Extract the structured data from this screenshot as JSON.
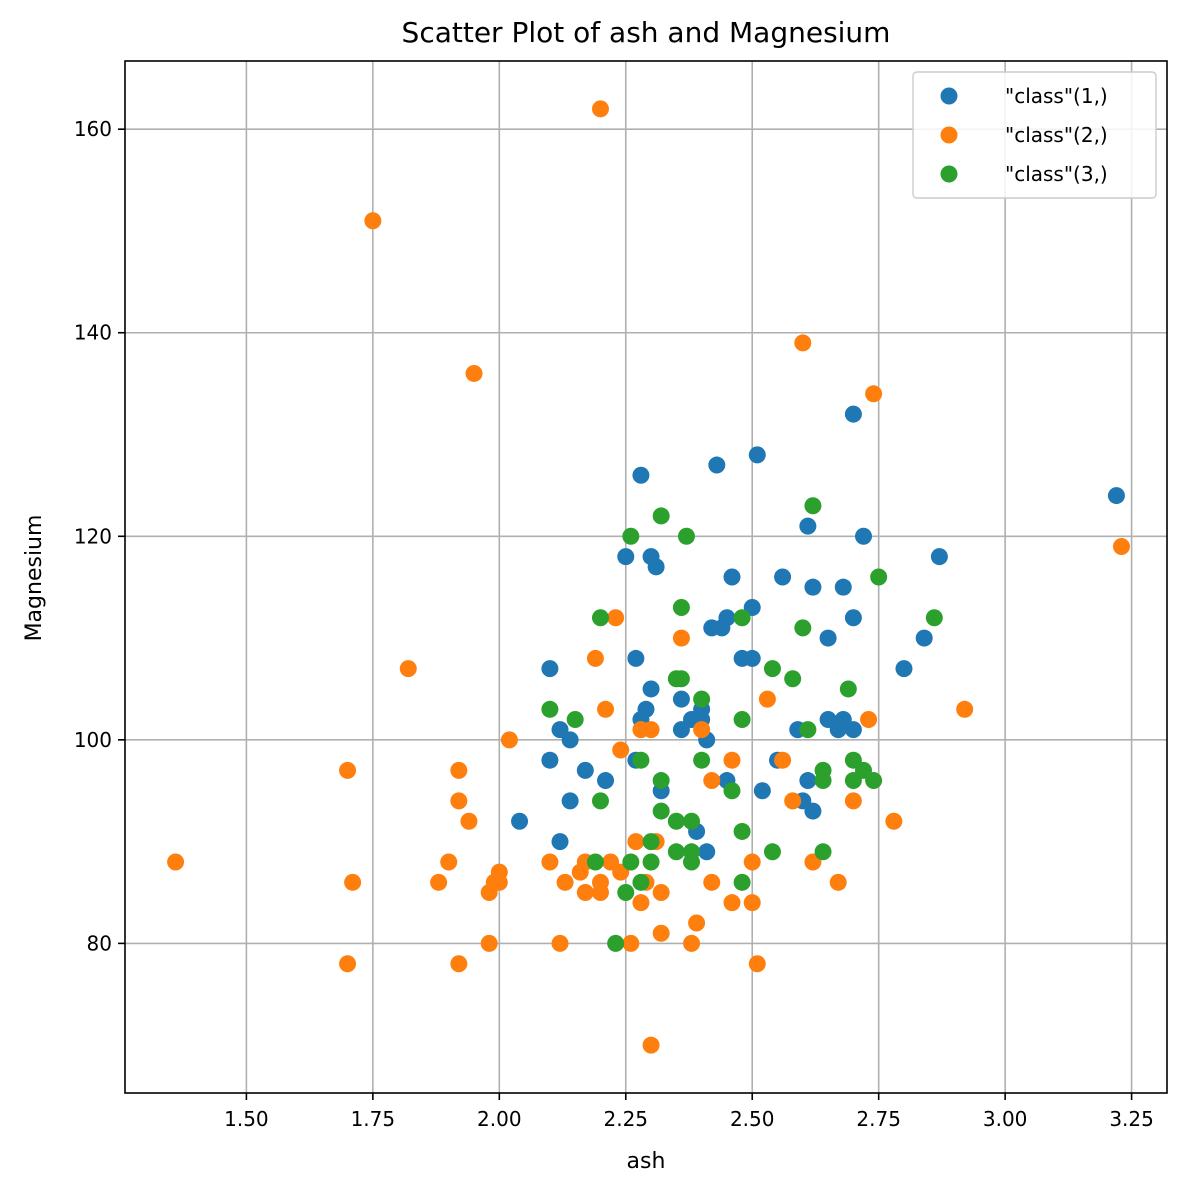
{
  "chart_data": {
    "type": "scatter",
    "title": "Scatter Plot of ash and Magnesium",
    "xlabel": "ash",
    "ylabel": "Magnesium",
    "xlim": [
      1.26,
      3.32
    ],
    "ylim": [
      65.3,
      166.7
    ],
    "xticks": [
      1.5,
      1.75,
      2.0,
      2.25,
      2.5,
      2.75,
      3.0,
      3.25
    ],
    "xtick_labels": [
      "1.50",
      "1.75",
      "2.00",
      "2.25",
      "2.50",
      "2.75",
      "3.00",
      "3.25"
    ],
    "yticks": [
      80,
      100,
      120,
      140,
      160
    ],
    "ytick_labels": [
      "80",
      "100",
      "120",
      "140",
      "160"
    ],
    "grid": true,
    "legend_position": "top-right",
    "series": [
      {
        "name": "\"class\"(1,)",
        "color": "#1f77b4",
        "points": [
          [
            3.22,
            124
          ],
          [
            2.87,
            118
          ],
          [
            2.84,
            110
          ],
          [
            2.8,
            107
          ],
          [
            2.72,
            120
          ],
          [
            2.7,
            132
          ],
          [
            2.7,
            112
          ],
          [
            2.7,
            101
          ],
          [
            2.68,
            115
          ],
          [
            2.68,
            102
          ],
          [
            2.67,
            101
          ],
          [
            2.65,
            110
          ],
          [
            2.65,
            102
          ],
          [
            2.62,
            115
          ],
          [
            2.62,
            93
          ],
          [
            2.61,
            121
          ],
          [
            2.61,
            96
          ],
          [
            2.6,
            94
          ],
          [
            2.59,
            101
          ],
          [
            2.56,
            116
          ],
          [
            2.55,
            98
          ],
          [
            2.52,
            95
          ],
          [
            2.51,
            128
          ],
          [
            2.5,
            113
          ],
          [
            2.5,
            108
          ],
          [
            2.48,
            108
          ],
          [
            2.46,
            116
          ],
          [
            2.45,
            112
          ],
          [
            2.45,
            96
          ],
          [
            2.44,
            111
          ],
          [
            2.43,
            127
          ],
          [
            2.42,
            111
          ],
          [
            2.41,
            100
          ],
          [
            2.41,
            89
          ],
          [
            2.4,
            103
          ],
          [
            2.4,
            102
          ],
          [
            2.39,
            91
          ],
          [
            2.38,
            102
          ],
          [
            2.36,
            104
          ],
          [
            2.36,
            101
          ],
          [
            2.32,
            95
          ],
          [
            2.31,
            117
          ],
          [
            2.3,
            118
          ],
          [
            2.3,
            105
          ],
          [
            2.29,
            103
          ],
          [
            2.28,
            126
          ],
          [
            2.28,
            102
          ],
          [
            2.27,
            108
          ],
          [
            2.27,
            98
          ],
          [
            2.25,
            118
          ],
          [
            2.21,
            96
          ],
          [
            2.17,
            97
          ],
          [
            2.14,
            100
          ],
          [
            2.14,
            94
          ],
          [
            2.12,
            101
          ],
          [
            2.12,
            90
          ],
          [
            2.1,
            107
          ],
          [
            2.1,
            98
          ],
          [
            2.04,
            92
          ]
        ]
      },
      {
        "name": "\"class\"(2,)",
        "color": "#ff7f0e",
        "points": [
          [
            1.36,
            88
          ],
          [
            1.7,
            97
          ],
          [
            1.7,
            78
          ],
          [
            1.71,
            86
          ],
          [
            1.75,
            151
          ],
          [
            1.82,
            107
          ],
          [
            1.88,
            86
          ],
          [
            1.9,
            88
          ],
          [
            1.92,
            97
          ],
          [
            1.92,
            94
          ],
          [
            1.92,
            78
          ],
          [
            1.94,
            92
          ],
          [
            1.95,
            136
          ],
          [
            1.98,
            85
          ],
          [
            1.98,
            80
          ],
          [
            1.99,
            86
          ],
          [
            2.0,
            87
          ],
          [
            2.0,
            86
          ],
          [
            2.02,
            100
          ],
          [
            2.1,
            88
          ],
          [
            2.12,
            80
          ],
          [
            2.13,
            86
          ],
          [
            2.16,
            87
          ],
          [
            2.17,
            88
          ],
          [
            2.17,
            85
          ],
          [
            2.19,
            108
          ],
          [
            2.2,
            162
          ],
          [
            2.2,
            86
          ],
          [
            2.2,
            85
          ],
          [
            2.21,
            103
          ],
          [
            2.22,
            88
          ],
          [
            2.23,
            112
          ],
          [
            2.24,
            99
          ],
          [
            2.24,
            87
          ],
          [
            2.26,
            80
          ],
          [
            2.27,
            90
          ],
          [
            2.28,
            101
          ],
          [
            2.28,
            84
          ],
          [
            2.29,
            86
          ],
          [
            2.3,
            101
          ],
          [
            2.3,
            70
          ],
          [
            2.31,
            90
          ],
          [
            2.32,
            85
          ],
          [
            2.32,
            81
          ],
          [
            2.36,
            110
          ],
          [
            2.38,
            80
          ],
          [
            2.39,
            82
          ],
          [
            2.4,
            101
          ],
          [
            2.42,
            96
          ],
          [
            2.42,
            86
          ],
          [
            2.46,
            98
          ],
          [
            2.46,
            84
          ],
          [
            2.5,
            88
          ],
          [
            2.5,
            84
          ],
          [
            2.51,
            78
          ],
          [
            2.53,
            104
          ],
          [
            2.56,
            98
          ],
          [
            2.58,
            94
          ],
          [
            2.6,
            139
          ],
          [
            2.62,
            88
          ],
          [
            2.67,
            86
          ],
          [
            2.7,
            94
          ],
          [
            2.73,
            102
          ],
          [
            2.74,
            134
          ],
          [
            2.78,
            92
          ],
          [
            2.92,
            103
          ],
          [
            3.23,
            119
          ]
        ]
      },
      {
        "name": "\"class\"(3,)",
        "color": "#2ca02c",
        "points": [
          [
            2.1,
            103
          ],
          [
            2.15,
            102
          ],
          [
            2.19,
            88
          ],
          [
            2.2,
            112
          ],
          [
            2.2,
            94
          ],
          [
            2.23,
            80
          ],
          [
            2.25,
            85
          ],
          [
            2.26,
            120
          ],
          [
            2.26,
            88
          ],
          [
            2.28,
            98
          ],
          [
            2.28,
            86
          ],
          [
            2.3,
            90
          ],
          [
            2.3,
            88
          ],
          [
            2.32,
            122
          ],
          [
            2.32,
            96
          ],
          [
            2.32,
            93
          ],
          [
            2.35,
            106
          ],
          [
            2.35,
            92
          ],
          [
            2.35,
            89
          ],
          [
            2.36,
            113
          ],
          [
            2.36,
            106
          ],
          [
            2.37,
            120
          ],
          [
            2.38,
            92
          ],
          [
            2.38,
            89
          ],
          [
            2.38,
            88
          ],
          [
            2.4,
            104
          ],
          [
            2.4,
            98
          ],
          [
            2.46,
            95
          ],
          [
            2.48,
            112
          ],
          [
            2.48,
            102
          ],
          [
            2.48,
            91
          ],
          [
            2.48,
            86
          ],
          [
            2.54,
            107
          ],
          [
            2.54,
            89
          ],
          [
            2.58,
            106
          ],
          [
            2.6,
            111
          ],
          [
            2.61,
            101
          ],
          [
            2.62,
            123
          ],
          [
            2.64,
            97
          ],
          [
            2.64,
            96
          ],
          [
            2.64,
            89
          ],
          [
            2.69,
            105
          ],
          [
            2.7,
            98
          ],
          [
            2.7,
            96
          ],
          [
            2.72,
            97
          ],
          [
            2.74,
            96
          ],
          [
            2.75,
            116
          ],
          [
            2.86,
            112
          ]
        ]
      }
    ]
  }
}
